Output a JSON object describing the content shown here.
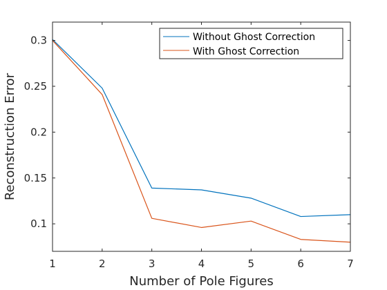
{
  "chart_data": {
    "type": "line",
    "title": "",
    "xlabel": "Number of Pole Figures",
    "ylabel": "Reconstruction Error",
    "x": [
      1,
      2,
      3,
      4,
      5,
      6,
      7
    ],
    "xlim": [
      1,
      7
    ],
    "ylim": [
      0.07,
      0.32
    ],
    "xticks": [
      1,
      2,
      3,
      4,
      5,
      6,
      7
    ],
    "xtick_labels": [
      "1",
      "2",
      "3",
      "4",
      "5",
      "6",
      "7"
    ],
    "yticks": [
      0.1,
      0.15,
      0.2,
      0.25,
      0.3
    ],
    "ytick_labels": [
      "0.1",
      "0.15",
      "0.2",
      "0.25",
      "0.3"
    ],
    "grid": false,
    "legend_position": "top-right",
    "series": [
      {
        "name": "Without Ghost Correction",
        "color": "#0072BD",
        "values": [
          0.301,
          0.248,
          0.139,
          0.137,
          0.128,
          0.108,
          0.11
        ]
      },
      {
        "name": "With Ghost Correction",
        "color": "#D95319",
        "values": [
          0.3,
          0.241,
          0.106,
          0.096,
          0.103,
          0.083,
          0.08
        ]
      }
    ]
  }
}
